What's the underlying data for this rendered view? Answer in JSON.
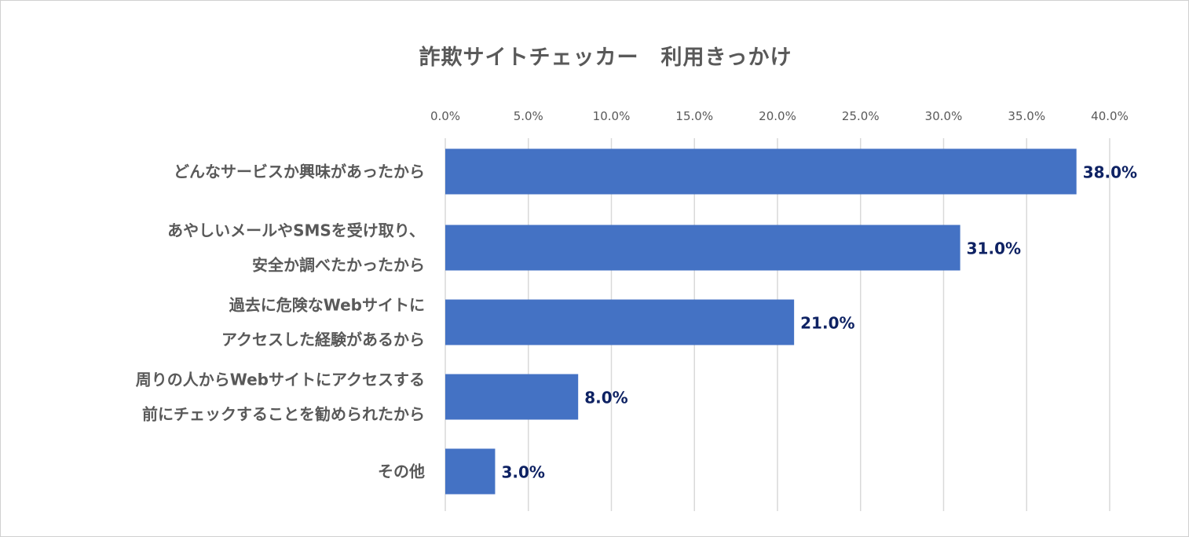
{
  "chart_data": {
    "type": "bar",
    "orientation": "horizontal",
    "title": "詐欺サイトチェッカー　利用きっかけ",
    "categories": [
      [
        "どんなサービスか興味があったから"
      ],
      [
        "あやしいメールやSMSを受け取り、",
        "安全か調べたかったから"
      ],
      [
        "過去に危険なWebサイトに",
        "アクセスした経験があるから"
      ],
      [
        "周りの人からWebサイトにアクセスする",
        "前にチェックすることを勧められたから"
      ],
      [
        "その他"
      ]
    ],
    "values": [
      38.0,
      31.0,
      21.0,
      8.0,
      3.0
    ],
    "data_labels": [
      "38.0%",
      "31.0%",
      "21.0%",
      "8.0%",
      "3.0%"
    ],
    "xlim": [
      0,
      40
    ],
    "x_ticks": [
      "0.0%",
      "5.0%",
      "10.0%",
      "15.0%",
      "20.0%",
      "25.0%",
      "30.0%",
      "35.0%",
      "40.0%"
    ],
    "x_axis_position": "top",
    "grid": true,
    "legend": "none",
    "colors": {
      "bar": "#4472C4",
      "data_label": "#0E2263",
      "grid": "#D9D9D9",
      "text": "#595959"
    }
  }
}
